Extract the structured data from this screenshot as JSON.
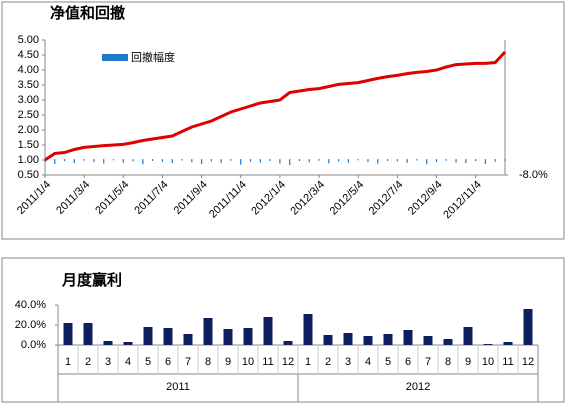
{
  "chart_data": [
    {
      "type": "line",
      "title": "净值和回撤",
      "categories": [
        "2011/1/4",
        null,
        null,
        null,
        "2011/3/4",
        null,
        null,
        null,
        "2011/5/4",
        null,
        null,
        null,
        "2011/7/4",
        null,
        null,
        null,
        "2011/9/4",
        null,
        null,
        null,
        "2011/11/4",
        null,
        null,
        null,
        "2012/1/4",
        null,
        null,
        null,
        "2012/3/4",
        null,
        null,
        null,
        "2012/5/4",
        null,
        null,
        null,
        "2012/7/4",
        null,
        null,
        null,
        "2012/9/4",
        null,
        null,
        null,
        "2012/11/4",
        null,
        null,
        null
      ],
      "series": [
        {
          "color": "#e00000",
          "values": [
            1.0,
            1.22,
            1.25,
            1.35,
            1.42,
            1.45,
            1.48,
            1.5,
            1.52,
            1.58,
            1.65,
            1.7,
            1.75,
            1.8,
            1.95,
            2.1,
            2.2,
            2.3,
            2.45,
            2.6,
            2.7,
            2.8,
            2.9,
            2.95,
            3.0,
            3.25,
            3.3,
            3.35,
            3.38,
            3.45,
            3.52,
            3.55,
            3.58,
            3.65,
            3.72,
            3.78,
            3.82,
            3.88,
            3.92,
            3.95,
            4.0,
            4.1,
            4.18,
            4.2,
            4.22,
            4.22,
            4.25,
            4.6
          ]
        },
        {
          "name": "回撤幅度",
          "color": "#1f78c8",
          "type": "bar",
          "axis": "y2",
          "values": [
            -1.5,
            -2.5,
            -1.0,
            -2.0,
            -0.8,
            -1.5,
            -2.2,
            -0.6,
            -1.8,
            -1.2,
            -2.6,
            -0.9,
            -1.4,
            -2.0,
            -0.7,
            -1.6,
            -2.4,
            -1.1,
            -1.9,
            -0.8,
            -2.8,
            -1.3,
            -1.7,
            -0.9,
            -2.2,
            -3.0,
            -1.0,
            -1.6,
            -0.8,
            -2.1,
            -1.2,
            -1.8,
            -0.6,
            -1.5,
            -2.3,
            -0.9,
            -1.1,
            -1.9,
            -0.7,
            -2.6,
            -1.4,
            -0.8,
            -1.7,
            -2.0,
            -1.0,
            -2.4,
            -1.3,
            -0.9
          ]
        }
      ],
      "ylim": [
        0.5,
        5.0
      ],
      "yticks": [
        {
          "value": 0.5,
          "label": "0.50"
        },
        {
          "value": 1.0,
          "label": "1.00"
        },
        {
          "value": 1.5,
          "label": "1.50"
        },
        {
          "value": 2.0,
          "label": "2.00"
        },
        {
          "value": 2.5,
          "label": "2.50"
        },
        {
          "value": 3.0,
          "label": "3.00"
        },
        {
          "value": 3.5,
          "label": "3.50"
        },
        {
          "value": 4.0,
          "label": "4.00"
        },
        {
          "value": 4.5,
          "label": "4.50"
        },
        {
          "value": 5.0,
          "label": "5.00"
        }
      ],
      "y2lim": [
        -8,
        60
      ],
      "y2ticks": [
        {
          "value": -8,
          "label": "-8.0%"
        }
      ]
    },
    {
      "type": "bar",
      "title": "月度赢利",
      "color": "#0d1f5c",
      "categories": [
        "1",
        "2",
        "3",
        "4",
        "5",
        "6",
        "7",
        "8",
        "9",
        "10",
        "11",
        "12",
        "1",
        "2",
        "3",
        "4",
        "5",
        "6",
        "7",
        "8",
        "9",
        "10",
        "11",
        "12"
      ],
      "groups": [
        "2011",
        "2012"
      ],
      "values": [
        22,
        22,
        4,
        3,
        18,
        17,
        11,
        27,
        16,
        17,
        28,
        4,
        31,
        10,
        12,
        9,
        11,
        15,
        9,
        6,
        18,
        1,
        3,
        36
      ],
      "ylim": [
        0,
        40
      ],
      "yticks": [
        {
          "value": 0,
          "label": "0.0%"
        },
        {
          "value": 20,
          "label": "20.0%"
        },
        {
          "value": 40,
          "label": "40.0%"
        }
      ]
    }
  ]
}
